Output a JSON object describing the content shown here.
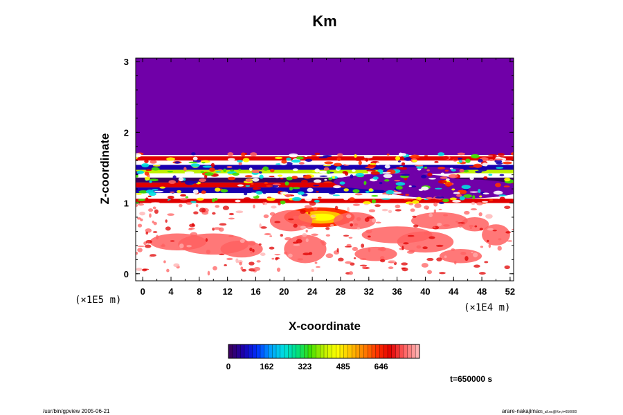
{
  "chart_data": {
    "type": "heatmap",
    "title": "Km",
    "xlabel": "X-coordinate",
    "ylabel": "Z-coordinate",
    "x_unit": "(×1E4 m)",
    "y_unit": "(×1E5 m)",
    "xlim": [
      -1,
      52.5
    ],
    "ylim": [
      -0.1,
      3.05
    ],
    "x_ticks": [
      "0",
      "4",
      "8",
      "12",
      "16",
      "20",
      "24",
      "28",
      "32",
      "36",
      "40",
      "44",
      "48",
      "52"
    ],
    "y_ticks": [
      "0",
      "1",
      "2",
      "3"
    ],
    "colorbar": {
      "ticks": [
        "0",
        "162",
        "323",
        "485",
        "646"
      ],
      "colors": [
        "#3a0060",
        "#1a00b0",
        "#0030ff",
        "#00a0ff",
        "#00e0e0",
        "#00e080",
        "#40e000",
        "#c0f000",
        "#ffff00",
        "#ffc000",
        "#ff8000",
        "#ff3000",
        "#e00000",
        "#ff6060",
        "#ffb0b0"
      ]
    },
    "background_color": "#7000a8",
    "time_label": "t=650000 s"
  },
  "footer": {
    "left": "/usr/bin/gpview 2005-06-21",
    "right": "arare-nakajima",
    "right_small": "05_all.nc@Km,t=650000"
  }
}
